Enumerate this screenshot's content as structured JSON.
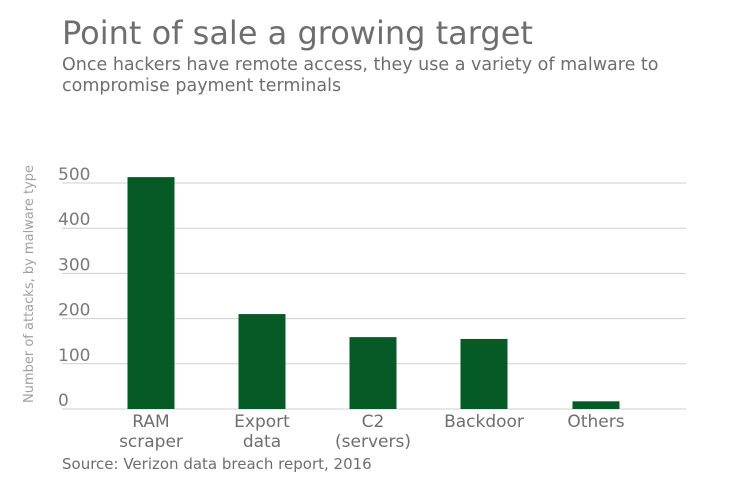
{
  "title": "Point of sale a growing target",
  "subtitle": "Once hackers have remote access, they use a variety of malware to compromise payment terminals",
  "source": "Source: Verizon data breach report, 2016",
  "chart_data": {
    "type": "bar",
    "categories": [
      [
        "RAM",
        "scraper"
      ],
      [
        "Export",
        "data"
      ],
      [
        "C2",
        "(servers)"
      ],
      [
        "Backdoor"
      ],
      [
        "Others"
      ]
    ],
    "values": [
      513,
      210,
      159,
      155,
      17
    ],
    "ylabel": "Number of attacks, by malware type",
    "ylim": [
      0,
      500
    ],
    "yticks": [
      0,
      100,
      200,
      300,
      400,
      500
    ],
    "grid": true,
    "bar_color": "#055a25",
    "grid_color": "#cfcfcf"
  }
}
